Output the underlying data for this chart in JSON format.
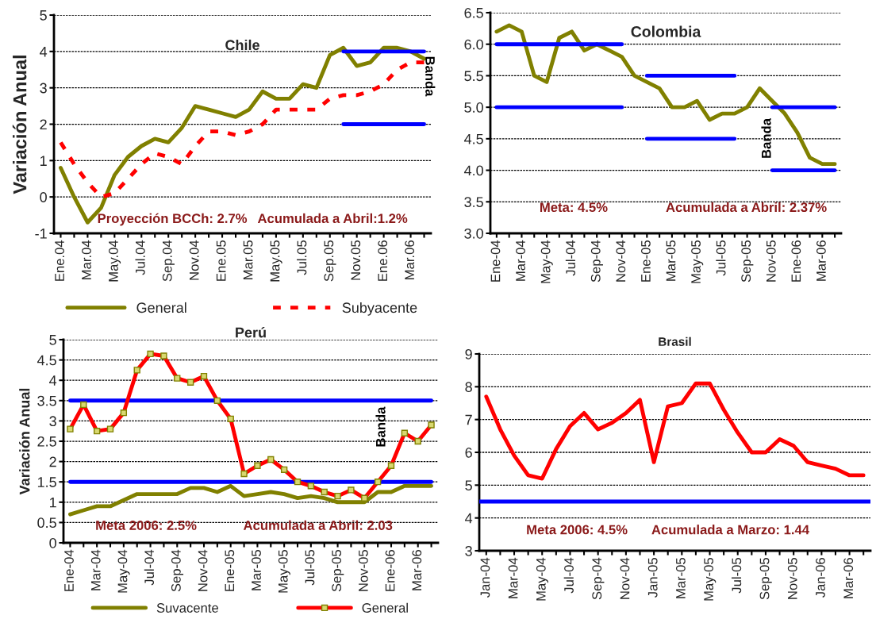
{
  "chart_data": [
    {
      "type": "line",
      "title": "Chile",
      "ylabel": "Variación Anual",
      "categories": [
        "Ene.04",
        null,
        "Mar.04",
        null,
        "May.04",
        null,
        "Jul.04",
        null,
        "Sep.04",
        null,
        "Nov.04",
        null,
        "Ene.05",
        null,
        "Mar.05",
        null,
        "May.05",
        null,
        "Jul.05",
        null,
        "Sep.05",
        null,
        "Nov.05",
        null,
        "Ene.06",
        null,
        "Mar.06",
        null
      ],
      "series": [
        {
          "name": "General",
          "color": "#808000",
          "line_style": "solid",
          "values": [
            0.8,
            0.0,
            -0.7,
            -0.3,
            0.6,
            1.1,
            1.4,
            1.6,
            1.5,
            1.9,
            2.5,
            2.4,
            2.3,
            2.2,
            2.4,
            2.9,
            2.7,
            2.7,
            3.1,
            3.0,
            3.9,
            4.1,
            3.6,
            3.7,
            4.1,
            4.1,
            4.0,
            3.8
          ]
        },
        {
          "name": "Subyacente",
          "color": "#ff0000",
          "line_style": "dashed",
          "values": [
            1.5,
            0.9,
            0.4,
            0.0,
            0.1,
            0.5,
            0.9,
            1.2,
            1.1,
            0.9,
            1.4,
            1.8,
            1.8,
            1.7,
            1.8,
            2.0,
            2.4,
            2.4,
            2.4,
            2.4,
            2.7,
            2.8,
            2.8,
            2.9,
            3.1,
            3.5,
            3.7,
            3.7
          ]
        },
        {
          "color": "#0000ff",
          "line_style": "solid",
          "values": [
            null,
            null,
            null,
            null,
            null,
            null,
            null,
            null,
            null,
            null,
            null,
            null,
            null,
            null,
            null,
            null,
            null,
            null,
            null,
            null,
            null,
            4,
            4,
            4,
            4,
            4,
            4,
            4
          ]
        },
        {
          "color": "#0000ff",
          "line_style": "solid",
          "values": [
            null,
            null,
            null,
            null,
            null,
            null,
            null,
            null,
            null,
            null,
            null,
            null,
            null,
            null,
            null,
            null,
            null,
            null,
            null,
            null,
            null,
            2,
            2,
            2,
            2,
            2,
            2,
            2
          ]
        }
      ],
      "ylim": [
        -1,
        5
      ],
      "yticks": [
        -1,
        0,
        1,
        2,
        3,
        4,
        5
      ],
      "grid": "y",
      "legend": "bottom",
      "annotations": [
        "Proyección BCCh: 2.7%",
        "Acumulada a Abril:1.2%",
        "Banda"
      ]
    },
    {
      "type": "line",
      "title": "Colombia",
      "categories": [
        "Ene-04",
        null,
        "Mar-04",
        null,
        "May-04",
        null,
        "Jul-04",
        null,
        "Sep-04",
        null,
        "Nov-04",
        null,
        "Ene-05",
        null,
        "Mar-05",
        null,
        "May-05",
        null,
        "Jul-05",
        null,
        "Sep-05",
        null,
        "Nov-05",
        null,
        "Ene-06",
        null,
        "Mar-06",
        null
      ],
      "series": [
        {
          "color": "#808000",
          "line_style": "solid",
          "values": [
            6.2,
            6.3,
            6.2,
            5.5,
            5.4,
            6.1,
            6.2,
            5.9,
            6.0,
            5.9,
            5.8,
            5.5,
            5.4,
            5.3,
            5.0,
            5.0,
            5.1,
            4.8,
            4.9,
            4.9,
            5.0,
            5.3,
            5.1,
            4.9,
            4.6,
            4.2,
            4.1,
            4.1
          ]
        },
        {
          "color": "#0000ff",
          "line_style": "solid",
          "values": [
            6.0,
            6.0,
            6.0,
            6.0,
            6.0,
            6.0,
            6.0,
            6.0,
            6.0,
            6.0,
            6.0,
            null,
            null,
            null,
            null,
            null,
            null,
            null,
            null,
            null,
            null,
            null,
            null,
            null,
            null,
            null,
            null,
            null
          ]
        },
        {
          "color": "#0000ff",
          "line_style": "solid",
          "values": [
            5.0,
            5.0,
            5.0,
            5.0,
            5.0,
            5.0,
            5.0,
            5.0,
            5.0,
            5.0,
            5.0,
            null,
            null,
            null,
            null,
            null,
            null,
            null,
            null,
            null,
            null,
            null,
            null,
            null,
            null,
            null,
            null,
            null
          ]
        },
        {
          "color": "#0000ff",
          "line_style": "solid",
          "values": [
            null,
            null,
            null,
            null,
            null,
            null,
            null,
            null,
            null,
            null,
            null,
            null,
            5.5,
            5.5,
            5.5,
            5.5,
            5.5,
            5.5,
            5.5,
            5.5,
            null,
            null,
            null,
            null,
            null,
            null,
            null,
            null
          ]
        },
        {
          "color": "#0000ff",
          "line_style": "solid",
          "values": [
            null,
            null,
            null,
            null,
            null,
            null,
            null,
            null,
            null,
            null,
            null,
            null,
            4.5,
            4.5,
            4.5,
            4.5,
            4.5,
            4.5,
            4.5,
            4.5,
            null,
            null,
            null,
            null,
            null,
            null,
            null,
            null
          ]
        },
        {
          "color": "#0000ff",
          "line_style": "solid",
          "values": [
            null,
            null,
            null,
            null,
            null,
            null,
            null,
            null,
            null,
            null,
            null,
            null,
            null,
            null,
            null,
            null,
            null,
            null,
            null,
            null,
            null,
            null,
            5.0,
            5.0,
            5.0,
            5.0,
            5.0,
            5.0
          ]
        },
        {
          "color": "#0000ff",
          "line_style": "solid",
          "values": [
            null,
            null,
            null,
            null,
            null,
            null,
            null,
            null,
            null,
            null,
            null,
            null,
            null,
            null,
            null,
            null,
            null,
            null,
            null,
            null,
            null,
            null,
            4.0,
            4.0,
            4.0,
            4.0,
            4.0,
            4.0
          ]
        }
      ],
      "ylim": [
        3.0,
        6.5
      ],
      "yticks": [
        {
          "value": 3,
          "label": "3.0"
        },
        3.5,
        {
          "value": 4,
          "label": "4.0"
        },
        4.5,
        {
          "value": 5,
          "label": "5.0"
        },
        5.5,
        {
          "value": 6,
          "label": "6.0"
        },
        6.5
      ],
      "grid": "y",
      "annotations": [
        "Meta: 4.5%",
        "Acumulada a Abril: 2.37%",
        "Banda"
      ]
    },
    {
      "type": "line",
      "title": "Perú",
      "ylabel": "Variación Anual",
      "categories": [
        "Ene-04",
        null,
        "Mar-04",
        null,
        "May-04",
        null,
        "Jul-04",
        null,
        "Sep-04",
        null,
        "Nov-04",
        null,
        "Ene-05",
        null,
        "Mar-05",
        null,
        "May-05",
        null,
        "Jul-05",
        null,
        "Sep-05",
        null,
        "Nov-05",
        null,
        "Ene-06",
        null,
        "Mar-06",
        null
      ],
      "series": [
        {
          "name": "Suvacente",
          "color": "#808000",
          "line_style": "solid",
          "values": [
            0.7,
            0.8,
            0.9,
            0.9,
            1.05,
            1.2,
            1.2,
            1.2,
            1.2,
            1.35,
            1.35,
            1.25,
            1.4,
            1.15,
            1.2,
            1.25,
            1.2,
            1.1,
            1.15,
            1.1,
            1.0,
            1.0,
            1.0,
            1.25,
            1.25,
            1.4,
            1.4,
            1.4
          ]
        },
        {
          "color": "#0000ff",
          "line_style": "solid",
          "values": [
            3.5,
            3.5,
            3.5,
            3.5,
            3.5,
            3.5,
            3.5,
            3.5,
            3.5,
            3.5,
            3.5,
            3.5,
            3.5,
            3.5,
            3.5,
            3.5,
            3.5,
            3.5,
            3.5,
            3.5,
            3.5,
            3.5,
            3.5,
            3.5,
            3.5,
            3.5,
            3.5,
            3.5
          ]
        },
        {
          "color": "#0000ff",
          "line_style": "solid",
          "values": [
            1.5,
            1.5,
            1.5,
            1.5,
            1.5,
            1.5,
            1.5,
            1.5,
            1.5,
            1.5,
            1.5,
            1.5,
            1.5,
            1.5,
            1.5,
            1.5,
            1.5,
            1.5,
            1.5,
            1.5,
            1.5,
            1.5,
            1.5,
            1.5,
            1.5,
            1.5,
            1.5,
            1.5
          ]
        },
        {
          "name": "General",
          "color": "#ff0000",
          "line_style": "solid",
          "marker": "square",
          "values": [
            2.8,
            3.4,
            2.75,
            2.8,
            3.2,
            4.25,
            4.65,
            4.6,
            4.05,
            3.95,
            4.1,
            3.5,
            3.05,
            1.7,
            1.9,
            2.05,
            1.8,
            1.5,
            1.4,
            1.25,
            1.15,
            1.3,
            1.1,
            1.5,
            1.9,
            2.7,
            2.5,
            2.9
          ]
        }
      ],
      "ylim": [
        0,
        5
      ],
      "yticks": [
        0,
        0.5,
        1,
        1.5,
        2,
        2.5,
        3,
        3.5,
        4,
        4.5,
        5
      ],
      "grid": "y",
      "legend": "bottom",
      "annotations": [
        "Meta 2006: 2.5%",
        "Acumulada a Abril: 2.03",
        "Banda"
      ]
    },
    {
      "type": "line",
      "title": "Brasil",
      "categories": [
        "Jan-04",
        null,
        "Mar-04",
        null,
        "May-04",
        null,
        "Jul-04",
        null,
        "Sep-04",
        null,
        "Nov-04",
        null,
        "Jan-05",
        null,
        "Mar-05",
        null,
        "May-05",
        null,
        "Jul-05",
        null,
        "Sep-05",
        null,
        "Nov-05",
        null,
        "Jan-06",
        null,
        "Mar-06",
        null
      ],
      "series": [
        {
          "color": "#ff0000",
          "line_style": "solid",
          "values": [
            7.7,
            6.7,
            5.9,
            5.3,
            5.2,
            6.1,
            6.8,
            7.2,
            6.7,
            6.9,
            7.2,
            7.6,
            5.7,
            7.4,
            7.5,
            8.1,
            8.1,
            7.3,
            6.6,
            6.0,
            6.0,
            6.4,
            6.2,
            5.7,
            5.6,
            5.5,
            5.3,
            5.3
          ]
        }
      ],
      "ref_lines": [
        {
          "axis": "y",
          "value": 4.5,
          "color": "#0000ff"
        }
      ],
      "ylim": [
        3,
        9
      ],
      "yticks": [
        3,
        4,
        5,
        6,
        7,
        8,
        9
      ],
      "grid": "y",
      "annotations": [
        "Meta 2006: 4.5%",
        "Acumulada a Marzo: 1.44"
      ]
    }
  ]
}
